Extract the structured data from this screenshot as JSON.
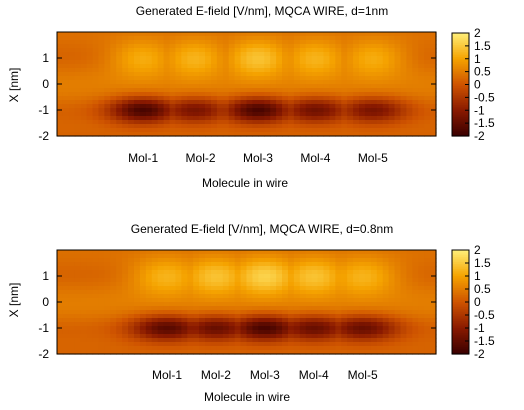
{
  "chart_data": [
    {
      "type": "heatmap",
      "title": "Generated E-field [V/nm], MQCA WIRE, d=1nm",
      "xlabel": "Molecule in wire",
      "ylabel": "X [nm]",
      "categories": [
        "Mol-1",
        "Mol-2",
        "Mol-3",
        "Mol-4",
        "Mol-5"
      ],
      "category_positions": [
        1,
        2,
        3,
        4,
        5
      ],
      "xlim": [
        -0.5,
        6.1
      ],
      "ylim": [
        -2,
        2
      ],
      "yticks": [
        "1",
        "0",
        "-1",
        "-2"
      ],
      "ytick_values": [
        1,
        0,
        -1,
        -2
      ],
      "colorbar": {
        "range": [
          -2,
          2
        ],
        "ticks": [
          "2",
          "1.5",
          "1",
          "0.5",
          "0",
          "-0.5",
          "-1",
          "-1.5",
          "-2"
        ],
        "tick_values": [
          2,
          1.5,
          1,
          0.5,
          0,
          -0.5,
          -1,
          -1.5,
          -2
        ],
        "colormap": [
          "#3a0000",
          "#8a1a00",
          "#cf5400",
          "#f5a300",
          "#fff07a"
        ]
      },
      "field_model": {
        "description_units": "E-field in V/nm",
        "upper_band": {
          "center_y": 1.0,
          "max_value": 1.2
        },
        "lower_band": {
          "center_y": -1.0,
          "min_value": -2.0
        },
        "baseline_value": 0.6,
        "peaks": [
          {
            "x": 1.0,
            "lower": -2.0,
            "upper": 0.9
          },
          {
            "x": 1.9,
            "lower": -1.4,
            "upper": 1.0
          },
          {
            "x": 3.0,
            "lower": -2.0,
            "upper": 1.2
          },
          {
            "x": 4.0,
            "lower": -1.5,
            "upper": 1.0
          },
          {
            "x": 5.0,
            "lower": -1.4,
            "upper": 0.9
          }
        ]
      }
    },
    {
      "type": "heatmap",
      "title": "Generated E-field [V/nm], MQCA WIRE, d=0.8nm",
      "xlabel": "Molecule in wire",
      "ylabel": "X [nm]",
      "categories": [
        "Mol-1",
        "Mol-2",
        "Mol-3",
        "Mol-4",
        "Mol-5"
      ],
      "category_positions": [
        1,
        1.8,
        2.6,
        3.4,
        4.2
      ],
      "xlim": [
        -0.8,
        5.4
      ],
      "ylim": [
        -2,
        2
      ],
      "yticks": [
        "1",
        "0",
        "-1",
        "-2"
      ],
      "ytick_values": [
        1,
        0,
        -1,
        -2
      ],
      "colorbar": {
        "range": [
          -2,
          2
        ],
        "ticks": [
          "2",
          "1.5",
          "1",
          "0.5",
          "0",
          "-0.5",
          "-1",
          "-1.5",
          "-2"
        ],
        "tick_values": [
          2,
          1.5,
          1,
          0.5,
          0,
          -0.5,
          -1,
          -1.5,
          -2
        ],
        "colormap": [
          "#3a0000",
          "#8a1a00",
          "#cf5400",
          "#f5a300",
          "#fff07a"
        ]
      },
      "field_model": {
        "description_units": "E-field in V/nm",
        "upper_band": {
          "center_y": 1.0,
          "max_value": 1.4
        },
        "lower_band": {
          "center_y": -1.0,
          "min_value": -2.0
        },
        "baseline_value": 0.6,
        "peaks": [
          {
            "x": 1.0,
            "lower": -1.8,
            "upper": 1.0
          },
          {
            "x": 1.8,
            "lower": -1.6,
            "upper": 1.2
          },
          {
            "x": 2.6,
            "lower": -2.0,
            "upper": 1.4
          },
          {
            "x": 3.4,
            "lower": -1.6,
            "upper": 1.2
          },
          {
            "x": 4.2,
            "lower": -1.6,
            "upper": 1.0
          }
        ]
      }
    }
  ]
}
